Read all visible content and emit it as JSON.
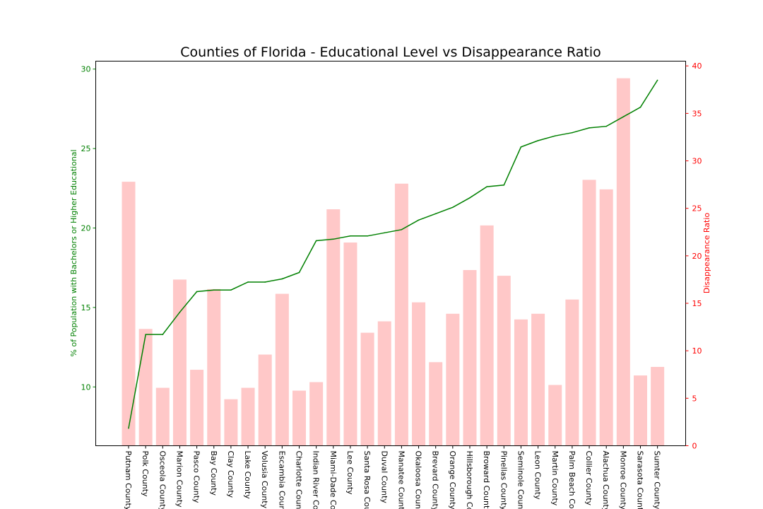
{
  "chart_data": {
    "type": "bar",
    "title": "Counties of Florida - Educational Level vs Disappearance Ratio",
    "categories": [
      "Putnam County",
      "Polk County",
      "Osceola County",
      "Marion County",
      "Pasco County",
      "Bay County",
      "Clay County",
      "Lake County",
      "Volusia County",
      "Escambia County",
      "Charlotte County",
      "Indian River County",
      "Miami-Dade County",
      "Lee County",
      "Santa Rosa County",
      "Duval County",
      "Manatee County",
      "Okaloosa County",
      "Brevard County",
      "Orange County",
      "Hillsborough County",
      "Broward County",
      "Pinellas County",
      "Seminole County",
      "Leon County",
      "Martin County",
      "Palm Beach County",
      "Collier County",
      "Alachua County",
      "Monroe County",
      "Sarasota County",
      "Sumter County"
    ],
    "series": [
      {
        "name": "% of Population with Bachelors or Higher Educational",
        "type": "line",
        "axis": "left",
        "color": "#008000",
        "values": [
          7.4,
          13.3,
          13.3,
          14.7,
          16.0,
          16.1,
          16.1,
          16.6,
          16.6,
          16.8,
          17.2,
          19.2,
          19.3,
          19.5,
          19.5,
          19.7,
          19.9,
          20.5,
          20.9,
          21.3,
          21.9,
          22.6,
          22.7,
          25.1,
          25.5,
          25.8,
          26.0,
          26.3,
          26.4,
          27.0,
          27.6,
          29.3
        ]
      },
      {
        "name": "Disappearance Ratio",
        "type": "bar",
        "axis": "right",
        "color": "#ffc8c8",
        "values": [
          27.8,
          12.3,
          6.1,
          17.5,
          8.0,
          16.5,
          4.9,
          6.1,
          9.6,
          16.0,
          5.8,
          6.7,
          24.9,
          21.4,
          11.9,
          13.1,
          27.6,
          15.1,
          8.8,
          13.9,
          18.5,
          23.2,
          17.9,
          13.3,
          13.9,
          6.4,
          15.4,
          28.0,
          27.0,
          38.7,
          7.4,
          8.3
        ]
      }
    ],
    "ylabel": "% of Population with Bachelors or Higher Educational",
    "ylim": [
      6.3,
      30.5
    ],
    "yticks": [
      10,
      15,
      20,
      25,
      30
    ],
    "y2label": "Disappearance Ratio",
    "y2lim": [
      0,
      40.5
    ],
    "y2ticks": [
      0,
      5,
      10,
      15,
      20,
      25,
      30,
      35,
      40
    ],
    "grid": false,
    "left_axis_color": "#008000",
    "right_axis_color": "#ff0000"
  }
}
